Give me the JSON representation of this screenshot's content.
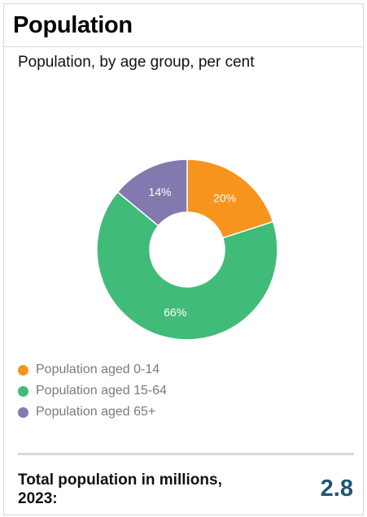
{
  "header": {
    "title": "Population"
  },
  "chart_data": {
    "type": "pie",
    "subtitle": "Population, by age group, per cent",
    "slices": [
      {
        "name": "Population aged 0-14",
        "value": 20,
        "label": "20%",
        "color": "#F7941D"
      },
      {
        "name": "Population aged 15-64",
        "value": 66,
        "label": "66%",
        "color": "#40BB78"
      },
      {
        "name": "Population aged 65+",
        "value": 14,
        "label": "14%",
        "color": "#8479AE"
      }
    ],
    "legend_placement": "bottom-left",
    "donut": true
  },
  "footer": {
    "label": "Total population in millions, 2023:",
    "value": "2.8",
    "value_color": "#1F5673"
  }
}
